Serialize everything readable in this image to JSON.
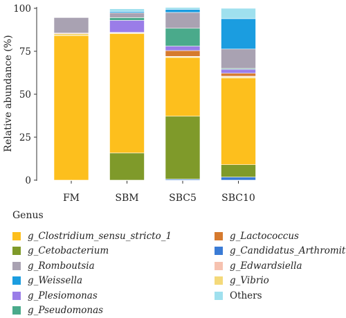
{
  "chart_data": {
    "type": "bar",
    "stacked": true,
    "ylabel": "Relative abundance (%)",
    "xlabel": "",
    "ylim": [
      0,
      100
    ],
    "yticks": [
      0,
      25,
      50,
      75,
      100
    ],
    "categories": [
      "FM",
      "SBM",
      "SBC5",
      "SBC10"
    ],
    "series": [
      {
        "name": "g_Candidatus_Arthromitus",
        "color": "#3a7bd5",
        "values": [
          0,
          0,
          0.6,
          1.8
        ]
      },
      {
        "name": "g_Cetobacterium",
        "color": "#7f9a2a",
        "values": [
          0,
          15.8,
          36.6,
          7.2
        ]
      },
      {
        "name": "g_Clostridium_sensu_stricto_1",
        "color": "#fdbf1d",
        "values": [
          84,
          69.4,
          34.2,
          50.5
        ]
      },
      {
        "name": "g_Vibrio",
        "color": "#f4d97a",
        "values": [
          1.2,
          0.5,
          0.4,
          0.6
        ]
      },
      {
        "name": "g_Edwardsiella",
        "color": "#f6c2b0",
        "values": [
          0.4,
          0.3,
          0.2,
          0.4
        ]
      },
      {
        "name": "g_Lactococcus",
        "color": "#d67a2e",
        "values": [
          0,
          0,
          3.4,
          1.7
        ]
      },
      {
        "name": "g_Plesiomonas",
        "color": "#9a7de8",
        "values": [
          0,
          7.0,
          2.6,
          2.3
        ]
      },
      {
        "name": "g_Pseudomonas",
        "color": "#4aaa8b",
        "values": [
          0,
          1.6,
          10.4,
          0.5
        ]
      },
      {
        "name": "g_Romboutsia",
        "color": "#a9a2b2",
        "values": [
          9.0,
          2.8,
          9.2,
          11.3
        ]
      },
      {
        "name": "g_Weissella",
        "color": "#1b9de0",
        "values": [
          0,
          0.8,
          1.8,
          17.7
        ]
      },
      {
        "name": "Others",
        "color": "#9fe0ee",
        "values": [
          0,
          1.5,
          1.1,
          6.0
        ]
      }
    ]
  },
  "legend": {
    "title": "Genus",
    "left": [
      {
        "label": "g_Clostridium_sensu_stricto_1",
        "color": "#fdbf1d",
        "italic": true
      },
      {
        "label": "g_Cetobacterium",
        "color": "#7f9a2a",
        "italic": true
      },
      {
        "label": "g_Romboutsia",
        "color": "#a9a2b2",
        "italic": true
      },
      {
        "label": "g_Weissella",
        "color": "#1b9de0",
        "italic": true
      },
      {
        "label": "g_Plesiomonas",
        "color": "#9a7de8",
        "italic": true
      },
      {
        "label": "g_Pseudomonas",
        "color": "#4aaa8b",
        "italic": true
      }
    ],
    "right": [
      {
        "label": "g_Lactococcus",
        "color": "#d67a2e",
        "italic": true
      },
      {
        "label": "g_Candidatus_Arthromitus",
        "color": "#3a7bd5",
        "italic": true
      },
      {
        "label": "g_Edwardsiella",
        "color": "#f6c2b0",
        "italic": true
      },
      {
        "label": "g_Vibrio",
        "color": "#f4d97a",
        "italic": true
      },
      {
        "label": "Others",
        "color": "#9fe0ee",
        "italic": false
      }
    ]
  }
}
